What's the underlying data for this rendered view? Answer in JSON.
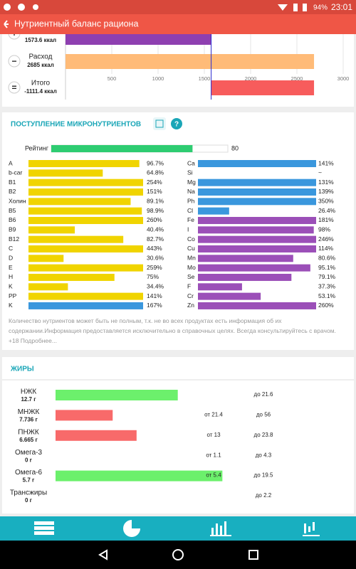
{
  "status_bar": {
    "battery": "94%",
    "time": "23:01"
  },
  "app_bar": {
    "title": "Нутриентный баланс рациона"
  },
  "energy": {
    "xlim": [
      0,
      3000
    ],
    "xticks": [
      500,
      1000,
      1500,
      2000,
      2500,
      3000
    ],
    "marker_color": "#2b2bd0",
    "rows": [
      {
        "sign": "+",
        "value": 1573.6,
        "label": "1573.6 ккал",
        "color": "#8e3fb0"
      },
      {
        "sign": "−",
        "name": "Расход",
        "value": 2685,
        "label": "2685 ккал",
        "color": "#ffbb78"
      },
      {
        "sign": "=",
        "name": "Итого",
        "value": -1111.4,
        "label": "-1111.4 ккал",
        "color": "#f75c5c"
      }
    ]
  },
  "micronutrients": {
    "title": "ПОСТУПЛЕНИЕ МИКРОНУТРИЕНТОВ",
    "xlim": [
      0,
      100
    ],
    "rating": {
      "label": "Рейтинг",
      "value": 80,
      "color": "#2ecc71"
    },
    "vitamins": [
      {
        "name": "A",
        "value": 96.7,
        "label": "96.7%",
        "color": "#f0d400"
      },
      {
        "name": "b-car",
        "value": 64.8,
        "label": "64.8%",
        "color": "#f0d400"
      },
      {
        "name": "B1",
        "value": 254,
        "label": "254%",
        "color": "#f0d400"
      },
      {
        "name": "B2",
        "value": 151,
        "label": "151%",
        "color": "#f0d400"
      },
      {
        "name": "Холин",
        "value": 89.1,
        "label": "89.1%",
        "color": "#f0d400"
      },
      {
        "name": "B5",
        "value": 98.9,
        "label": "98.9%",
        "color": "#f0d400"
      },
      {
        "name": "B6",
        "value": 260,
        "label": "260%",
        "color": "#f0d400"
      },
      {
        "name": "B9",
        "value": 40.4,
        "label": "40.4%",
        "color": "#f0d400"
      },
      {
        "name": "B12",
        "value": 82.7,
        "label": "82.7%",
        "color": "#f0d400"
      },
      {
        "name": "C",
        "value": 443,
        "label": "443%",
        "color": "#f0d400"
      },
      {
        "name": "D",
        "value": 30.6,
        "label": "30.6%",
        "color": "#f0d400"
      },
      {
        "name": "E",
        "value": 259,
        "label": "259%",
        "color": "#f0d400"
      },
      {
        "name": "H",
        "value": 75,
        "label": "75%",
        "color": "#f0d400"
      },
      {
        "name": "K",
        "value": 34.4,
        "label": "34.4%",
        "color": "#f0d400"
      },
      {
        "name": "PP",
        "value": 141,
        "label": "141%",
        "color": "#f0d400"
      },
      {
        "name": "K",
        "value": 167,
        "label": "167%",
        "color": "#3a97dd"
      }
    ],
    "minerals": [
      {
        "name": "Ca",
        "value": 141,
        "label": "141%",
        "color": "#3a97dd"
      },
      {
        "name": "Si",
        "value": null,
        "label": "~",
        "color": "#3a97dd"
      },
      {
        "name": "Mg",
        "value": 131,
        "label": "131%",
        "color": "#3a97dd"
      },
      {
        "name": "Na",
        "value": 139,
        "label": "139%",
        "color": "#3a97dd"
      },
      {
        "name": "Ph",
        "value": 350,
        "label": "350%",
        "color": "#3a97dd"
      },
      {
        "name": "Cl",
        "value": 26.4,
        "label": "26.4%",
        "color": "#3a97dd"
      },
      {
        "name": "Fe",
        "value": 181,
        "label": "181%",
        "color": "#9b4fb8"
      },
      {
        "name": "I",
        "value": 98,
        "label": "98%",
        "color": "#9b4fb8"
      },
      {
        "name": "Co",
        "value": 246,
        "label": "246%",
        "color": "#9b4fb8"
      },
      {
        "name": "Cu",
        "value": 114,
        "label": "114%",
        "color": "#9b4fb8"
      },
      {
        "name": "Mn",
        "value": 80.6,
        "label": "80.6%",
        "color": "#9b4fb8"
      },
      {
        "name": "Mo",
        "value": 95.1,
        "label": "95.1%",
        "color": "#9b4fb8"
      },
      {
        "name": "Se",
        "value": 79.1,
        "label": "79.1%",
        "color": "#9b4fb8"
      },
      {
        "name": "F",
        "value": 37.3,
        "label": "37.3%",
        "color": "#9b4fb8"
      },
      {
        "name": "Cr",
        "value": 53.1,
        "label": "53.1%",
        "color": "#9b4fb8"
      },
      {
        "name": "Zn",
        "value": 260,
        "label": "260%",
        "color": "#9b4fb8"
      }
    ],
    "note": "Количество нутриентов может быть не полным, т.к. не во всех продуктах есть информация об их содержании.Информация предоставляется исключительно в справочных целях. Всегда консультируйтесь с врачом. +18 Подробнее..."
  },
  "fats": {
    "title": "ЖИРЫ",
    "rows": [
      {
        "name": "НЖК",
        "value": 12.7,
        "label": "12.7 г",
        "max": 21.6,
        "max_label": "до 21.6",
        "color": "#6cf06c"
      },
      {
        "name": "МНЖК",
        "value": 7.736,
        "label": "7.736 г",
        "min": 21.4,
        "min_label": "от 21.4",
        "max": 56,
        "max_label": "до 56",
        "color": "#f86a6a"
      },
      {
        "name": "ПНЖК",
        "value": 6.665,
        "label": "6.665 г",
        "min": 13,
        "min_label": "от 13",
        "max": 23.8,
        "max_label": "до 23.8",
        "color": "#f86a6a"
      },
      {
        "name": "Омега-3",
        "value": 0,
        "label": "0 г",
        "min": 1.1,
        "min_label": "от 1.1",
        "max": 4.3,
        "max_label": "до 4.3",
        "color": "#f86a6a"
      },
      {
        "name": "Омега-6",
        "value": 5.7,
        "label": "5.7 г",
        "min": 5.4,
        "min_label": "от 5.4",
        "max": 19.5,
        "max_label": "до 19.5",
        "color": "#6cf06c"
      },
      {
        "name": "Трансжиры",
        "value": 0,
        "label": "0 г",
        "max": 2.2,
        "max_label": "до 2.2",
        "color": "#6cf06c"
      }
    ]
  }
}
